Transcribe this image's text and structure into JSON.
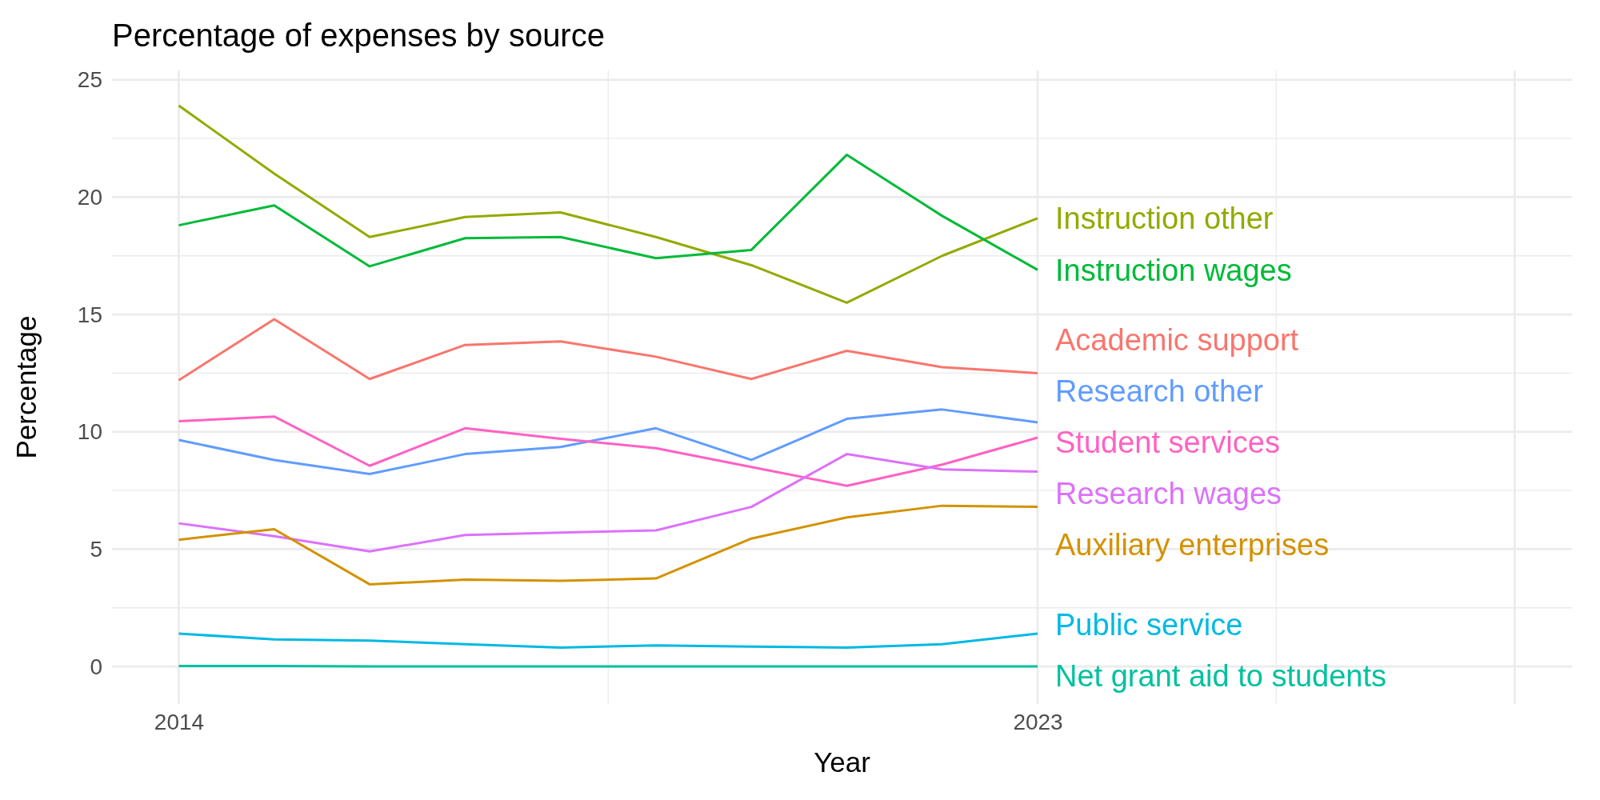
{
  "chart_data": {
    "type": "line",
    "title": "Percentage of expenses by source",
    "xlabel": "Year",
    "ylabel": "Percentage",
    "x": [
      2014,
      2015,
      2016,
      2017,
      2018,
      2019,
      2020,
      2021,
      2022,
      2023
    ],
    "xlim": [
      2013.3,
      2028.6
    ],
    "xticks": [
      2014,
      2023,
      {
        "value": 2028,
        "label": null
      }
    ],
    "ylim": [
      -1.6,
      25.4
    ],
    "yticks": [
      0,
      5,
      10,
      15,
      20,
      25
    ],
    "grid": true,
    "legend": false,
    "line_style": "solid",
    "series": [
      {
        "name": "Instruction other",
        "color": "#93aa00",
        "values": [
          23.9,
          21.0,
          18.3,
          19.15,
          19.35,
          18.3,
          17.1,
          15.5,
          17.5,
          19.1
        ]
      },
      {
        "name": "Instruction wages",
        "color": "#00ba38",
        "values": [
          18.8,
          19.65,
          17.05,
          18.25,
          18.3,
          17.4,
          17.75,
          21.8,
          19.2,
          16.9
        ]
      },
      {
        "name": "Academic support",
        "color": "#f8766d",
        "values": [
          12.2,
          14.8,
          12.25,
          13.7,
          13.85,
          13.2,
          12.25,
          13.45,
          12.75,
          12.5
        ]
      },
      {
        "name": "Research other",
        "color": "#619cff",
        "values": [
          9.65,
          8.8,
          8.2,
          9.05,
          9.35,
          10.15,
          8.8,
          10.55,
          10.95,
          10.4
        ]
      },
      {
        "name": "Student services",
        "color": "#ff61c3",
        "values": [
          10.45,
          10.65,
          8.55,
          10.15,
          9.7,
          9.3,
          8.5,
          7.7,
          8.6,
          9.75
        ]
      },
      {
        "name": "Research wages",
        "color": "#db72fb",
        "values": [
          6.1,
          5.55,
          4.9,
          5.6,
          5.7,
          5.8,
          6.8,
          9.05,
          8.4,
          8.3
        ]
      },
      {
        "name": "Auxiliary enterprises",
        "color": "#d39200",
        "values": [
          5.4,
          5.85,
          3.5,
          3.7,
          3.65,
          3.75,
          5.45,
          6.35,
          6.85,
          6.8
        ]
      },
      {
        "name": "Public service",
        "color": "#00b9e3",
        "values": [
          1.4,
          1.15,
          1.1,
          0.95,
          0.8,
          0.9,
          0.85,
          0.8,
          0.95,
          1.4
        ]
      },
      {
        "name": "Net grant aid to students",
        "color": "#00c19f",
        "values": [
          0.02,
          0.02,
          0,
          0,
          0,
          0,
          0,
          0,
          0,
          0
        ]
      }
    ]
  }
}
